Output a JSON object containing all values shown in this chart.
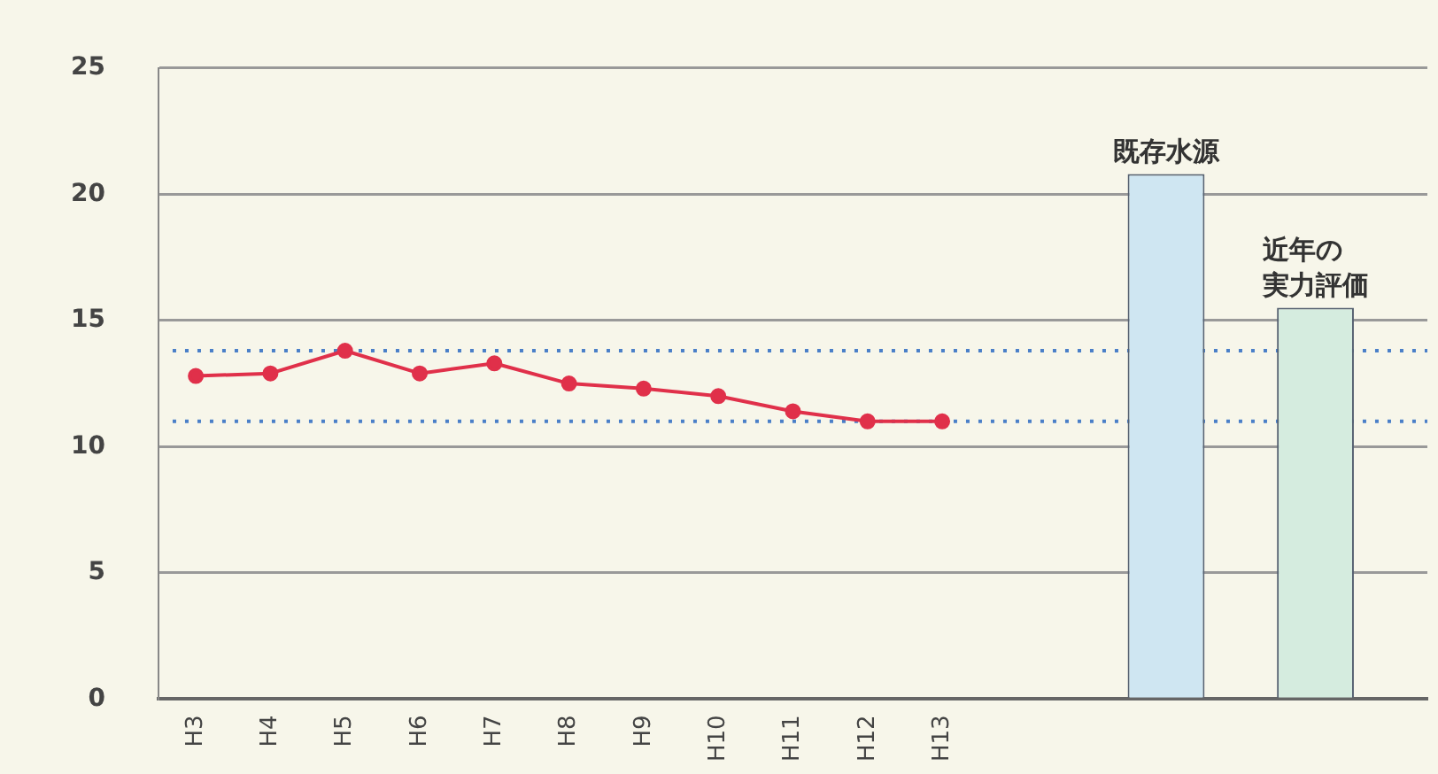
{
  "chart_data": {
    "type": "line",
    "categories": [
      "H3",
      "H4",
      "H5",
      "H6",
      "H7",
      "H8",
      "H9",
      "H10",
      "H11",
      "H12",
      "H13",
      null,
      null,
      null,
      null,
      null,
      null
    ],
    "series": [
      {
        "color": "#e0304a",
        "values": [
          12.8,
          12.9,
          13.8,
          12.9,
          13.3,
          12.5,
          12.3,
          12.0,
          11.4,
          11.0,
          11.0,
          null,
          null,
          null,
          null,
          null,
          null
        ]
      },
      {
        "type": "bar",
        "color": "#cfe6f2",
        "colors": [
          null,
          null,
          null,
          null,
          null,
          null,
          null,
          null,
          null,
          null,
          null,
          null,
          null,
          "#cfe6f2",
          null,
          "#d5ecdf",
          null
        ],
        "values": [
          null,
          null,
          null,
          null,
          null,
          null,
          null,
          null,
          null,
          null,
          null,
          null,
          null,
          20.8,
          null,
          15.5,
          null
        ]
      }
    ],
    "ylim": [
      0,
      25
    ],
    "yticks": [
      0,
      5,
      10,
      15,
      20,
      25
    ],
    "grid": "y",
    "marker": "circle",
    "line_style": "solid",
    "ref_lines": [
      {
        "axis": "y",
        "value": 13.8,
        "color": "#4a7fc8",
        "line_style": "dotted"
      },
      {
        "axis": "y",
        "value": 11.0,
        "color": "#4a7fc8",
        "line_style": "dotted"
      }
    ],
    "annotations": [
      "既存水源",
      "近年の実力評価"
    ]
  }
}
